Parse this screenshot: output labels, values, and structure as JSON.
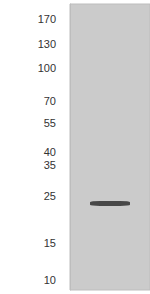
{
  "chart_data": {
    "type": "band",
    "categories": [
      null
    ],
    "values": [
      23
    ],
    "color": "#3a3a3a",
    "log": "y",
    "ylim": [
      9,
      200
    ],
    "yticks": [
      170,
      130,
      100,
      70,
      55,
      40,
      35,
      25,
      15,
      10
    ],
    "tick_labels": "y"
  }
}
